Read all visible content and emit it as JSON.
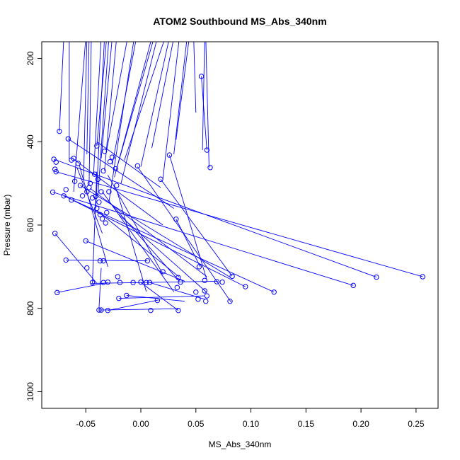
{
  "chart_data": {
    "type": "line",
    "title": "ATOM2 Southbound MS_Abs_340nm",
    "xlabel": "MS_Abs_340nm",
    "ylabel": "Pressure (mbar)",
    "xlim": [
      -0.09,
      0.27
    ],
    "ylim": [
      1040,
      160
    ],
    "y_reversed": true,
    "grid": false,
    "legend": "none",
    "x_ticks": [
      -0.05,
      0.0,
      0.05,
      0.1,
      0.15,
      0.2,
      0.25
    ],
    "x_tick_labels": [
      "-0.05",
      "0.00",
      "0.05",
      "0.10",
      "0.15",
      "0.20",
      "0.25"
    ],
    "y_ticks": [
      200,
      400,
      600,
      800,
      1000
    ],
    "y_tick_labels": [
      "200",
      "400",
      "600",
      "800",
      "1000"
    ],
    "series_color": "#0000ff",
    "top_fan": {
      "y_top": 150,
      "x_top": [
        -0.07,
        -0.065,
        -0.05,
        -0.049,
        -0.047,
        -0.045,
        -0.036,
        -0.033,
        -0.031,
        -0.029,
        -0.026,
        -0.022,
        -0.012,
        -0.006,
        -0.004,
        0.01,
        0.012,
        0.015,
        0.022,
        0.026,
        0.03,
        0.035,
        0.042,
        0.044,
        0.048,
        0.058,
        0.059
      ],
      "x_bottom": [
        -0.074,
        -0.065,
        -0.061,
        -0.052,
        -0.049,
        -0.047,
        -0.043,
        -0.041,
        -0.04,
        -0.039,
        -0.036,
        -0.033,
        -0.031,
        -0.029,
        -0.026,
        -0.024,
        -0.022,
        -0.018,
        -0.015,
        0.0,
        0.01,
        0.02,
        0.03,
        0.032,
        0.05,
        0.056,
        0.062
      ],
      "y_bottom": [
        375,
        447,
        520,
        490,
        430,
        505,
        480,
        560,
        410,
        530,
        440,
        470,
        420,
        545,
        455,
        485,
        465,
        500,
        445,
        460,
        415,
        490,
        430,
        395,
        330,
        420,
        462
      ]
    },
    "segments": [
      {
        "x": [
          -0.079,
          0.214
        ],
        "y": [
          442,
          725
        ]
      },
      {
        "x": [
          -0.077,
          0.256
        ],
        "y": [
          472,
          724
        ]
      },
      {
        "x": [
          -0.08,
          0.193
        ],
        "y": [
          521,
          745
        ]
      },
      {
        "x": [
          -0.07,
          0.121
        ],
        "y": [
          530,
          761
        ]
      },
      {
        "x": [
          -0.062,
          0.095
        ],
        "y": [
          540,
          748
        ]
      },
      {
        "x": [
          -0.055,
          0.081
        ],
        "y": [
          505,
          725
        ]
      },
      {
        "x": [
          -0.046,
          0.06
        ],
        "y": [
          512,
          724
        ]
      },
      {
        "x": [
          -0.04,
          0.035
        ],
        "y": [
          565,
          725
        ]
      },
      {
        "x": [
          -0.03,
          0.035
        ],
        "y": [
          540,
          735
        ]
      },
      {
        "x": [
          -0.035,
          0.03
        ],
        "y": [
          520,
          760
        ]
      },
      {
        "x": [
          -0.02,
          0.06
        ],
        "y": [
          575,
          762
        ]
      },
      {
        "x": [
          -0.03,
          0.02
        ],
        "y": [
          480,
          718
        ]
      },
      {
        "x": [
          -0.078,
          -0.04
        ],
        "y": [
          620,
          740
        ]
      },
      {
        "x": [
          -0.076,
          -0.03
        ],
        "y": [
          762,
          738
        ]
      },
      {
        "x": [
          -0.068,
          0.006
        ],
        "y": [
          684,
          686
        ]
      },
      {
        "x": [
          -0.045,
          0.07
        ],
        "y": [
          740,
          735
        ]
      },
      {
        "x": [
          -0.038,
          -0.036
        ],
        "y": [
          800,
          703
        ]
      },
      {
        "x": [
          -0.038,
          0.034
        ],
        "y": [
          804,
          801
        ]
      },
      {
        "x": [
          -0.03,
          0.016
        ],
        "y": [
          805,
          780
        ]
      },
      {
        "x": [
          0.0,
          0.034
        ],
        "y": [
          738,
          805
        ]
      },
      {
        "x": [
          0.008,
          0.058
        ],
        "y": [
          738,
          778
        ]
      },
      {
        "x": [
          -0.02,
          0.058
        ],
        "y": [
          776,
          770
        ]
      },
      {
        "x": [
          -0.013,
          0.04
        ],
        "y": [
          769,
          783
        ]
      },
      {
        "x": [
          0.055,
          0.06
        ],
        "y": [
          243,
          420
        ]
      },
      {
        "x": [
          0.026,
          0.06
        ],
        "y": [
          432,
          732
        ]
      },
      {
        "x": [
          0.018,
          0.083
        ],
        "y": [
          490,
          723
        ]
      },
      {
        "x": [
          -0.003,
          0.082
        ],
        "y": [
          460,
          785
        ]
      },
      {
        "x": [
          0.032,
          0.054
        ],
        "y": [
          586,
          700
        ]
      },
      {
        "x": [
          -0.05,
          0.04
        ],
        "y": [
          638,
          735
        ]
      },
      {
        "x": [
          -0.056,
          -0.03
        ],
        "y": [
          455,
          700
        ]
      },
      {
        "x": [
          -0.04,
          -0.044
        ],
        "y": [
          472,
          740
        ]
      },
      {
        "x": [
          -0.062,
          0.02
        ],
        "y": [
          440,
          600
        ]
      },
      {
        "x": [
          -0.066,
          0.03
        ],
        "y": [
          393,
          560
        ]
      },
      {
        "x": [
          -0.058,
          -0.035
        ],
        "y": [
          462,
          620
        ]
      },
      {
        "x": [
          -0.04,
          0.018
        ],
        "y": [
          400,
          510
        ]
      },
      {
        "x": [
          -0.022,
          0.005
        ],
        "y": [
          515,
          760
        ]
      }
    ],
    "markers": [
      {
        "x": -0.074,
        "y": 375
      },
      {
        "x": -0.066,
        "y": 393
      },
      {
        "x": -0.079,
        "y": 442
      },
      {
        "x": -0.077,
        "y": 449
      },
      {
        "x": -0.063,
        "y": 444
      },
      {
        "x": -0.061,
        "y": 440
      },
      {
        "x": -0.057,
        "y": 452
      },
      {
        "x": -0.078,
        "y": 466
      },
      {
        "x": -0.077,
        "y": 472
      },
      {
        "x": -0.08,
        "y": 521
      },
      {
        "x": -0.07,
        "y": 530
      },
      {
        "x": -0.068,
        "y": 515
      },
      {
        "x": -0.063,
        "y": 540
      },
      {
        "x": -0.06,
        "y": 495
      },
      {
        "x": -0.055,
        "y": 505
      },
      {
        "x": -0.053,
        "y": 530
      },
      {
        "x": -0.049,
        "y": 520
      },
      {
        "x": -0.047,
        "y": 510
      },
      {
        "x": -0.046,
        "y": 500
      },
      {
        "x": -0.044,
        "y": 535
      },
      {
        "x": -0.042,
        "y": 478
      },
      {
        "x": -0.041,
        "y": 531
      },
      {
        "x": -0.04,
        "y": 560
      },
      {
        "x": -0.039,
        "y": 490
      },
      {
        "x": -0.038,
        "y": 545
      },
      {
        "x": -0.037,
        "y": 575
      },
      {
        "x": -0.036,
        "y": 520
      },
      {
        "x": -0.035,
        "y": 585
      },
      {
        "x": -0.034,
        "y": 470
      },
      {
        "x": -0.033,
        "y": 423
      },
      {
        "x": -0.032,
        "y": 595
      },
      {
        "x": -0.031,
        "y": 570
      },
      {
        "x": -0.029,
        "y": 520
      },
      {
        "x": -0.028,
        "y": 448
      },
      {
        "x": -0.026,
        "y": 437
      },
      {
        "x": -0.023,
        "y": 465
      },
      {
        "x": -0.022,
        "y": 505
      },
      {
        "x": -0.04,
        "y": 410
      },
      {
        "x": -0.003,
        "y": 458
      },
      {
        "x": 0.018,
        "y": 490
      },
      {
        "x": 0.026,
        "y": 432
      },
      {
        "x": 0.06,
        "y": 420
      },
      {
        "x": 0.063,
        "y": 462
      },
      {
        "x": 0.055,
        "y": 243
      },
      {
        "x": 0.032,
        "y": 586
      },
      {
        "x": -0.078,
        "y": 620
      },
      {
        "x": -0.05,
        "y": 638
      },
      {
        "x": -0.068,
        "y": 684
      },
      {
        "x": -0.037,
        "y": 686
      },
      {
        "x": -0.034,
        "y": 686
      },
      {
        "x": 0.006,
        "y": 686
      },
      {
        "x": -0.049,
        "y": 703
      },
      {
        "x": -0.044,
        "y": 738
      },
      {
        "x": -0.034,
        "y": 738
      },
      {
        "x": -0.03,
        "y": 737
      },
      {
        "x": -0.019,
        "y": 738
      },
      {
        "x": -0.007,
        "y": 738
      },
      {
        "x": 0.0,
        "y": 737
      },
      {
        "x": 0.005,
        "y": 738
      },
      {
        "x": 0.008,
        "y": 738
      },
      {
        "x": -0.021,
        "y": 724
      },
      {
        "x": 0.02,
        "y": 712
      },
      {
        "x": 0.034,
        "y": 726
      },
      {
        "x": 0.036,
        "y": 737
      },
      {
        "x": 0.053,
        "y": 700
      },
      {
        "x": 0.058,
        "y": 733
      },
      {
        "x": 0.069,
        "y": 736
      },
      {
        "x": 0.074,
        "y": 737
      },
      {
        "x": 0.083,
        "y": 723
      },
      {
        "x": 0.095,
        "y": 748
      },
      {
        "x": 0.121,
        "y": 761
      },
      {
        "x": 0.193,
        "y": 745
      },
      {
        "x": 0.214,
        "y": 725
      },
      {
        "x": 0.256,
        "y": 724
      },
      {
        "x": -0.076,
        "y": 762
      },
      {
        "x": -0.013,
        "y": 769
      },
      {
        "x": -0.02,
        "y": 776
      },
      {
        "x": 0.015,
        "y": 781
      },
      {
        "x": 0.033,
        "y": 750
      },
      {
        "x": 0.05,
        "y": 761
      },
      {
        "x": 0.058,
        "y": 758
      },
      {
        "x": 0.06,
        "y": 770
      },
      {
        "x": 0.052,
        "y": 778
      },
      {
        "x": 0.059,
        "y": 783
      },
      {
        "x": 0.081,
        "y": 783
      },
      {
        "x": -0.038,
        "y": 804
      },
      {
        "x": -0.036,
        "y": 804
      },
      {
        "x": -0.03,
        "y": 805
      },
      {
        "x": 0.009,
        "y": 805
      },
      {
        "x": 0.034,
        "y": 805
      }
    ]
  }
}
